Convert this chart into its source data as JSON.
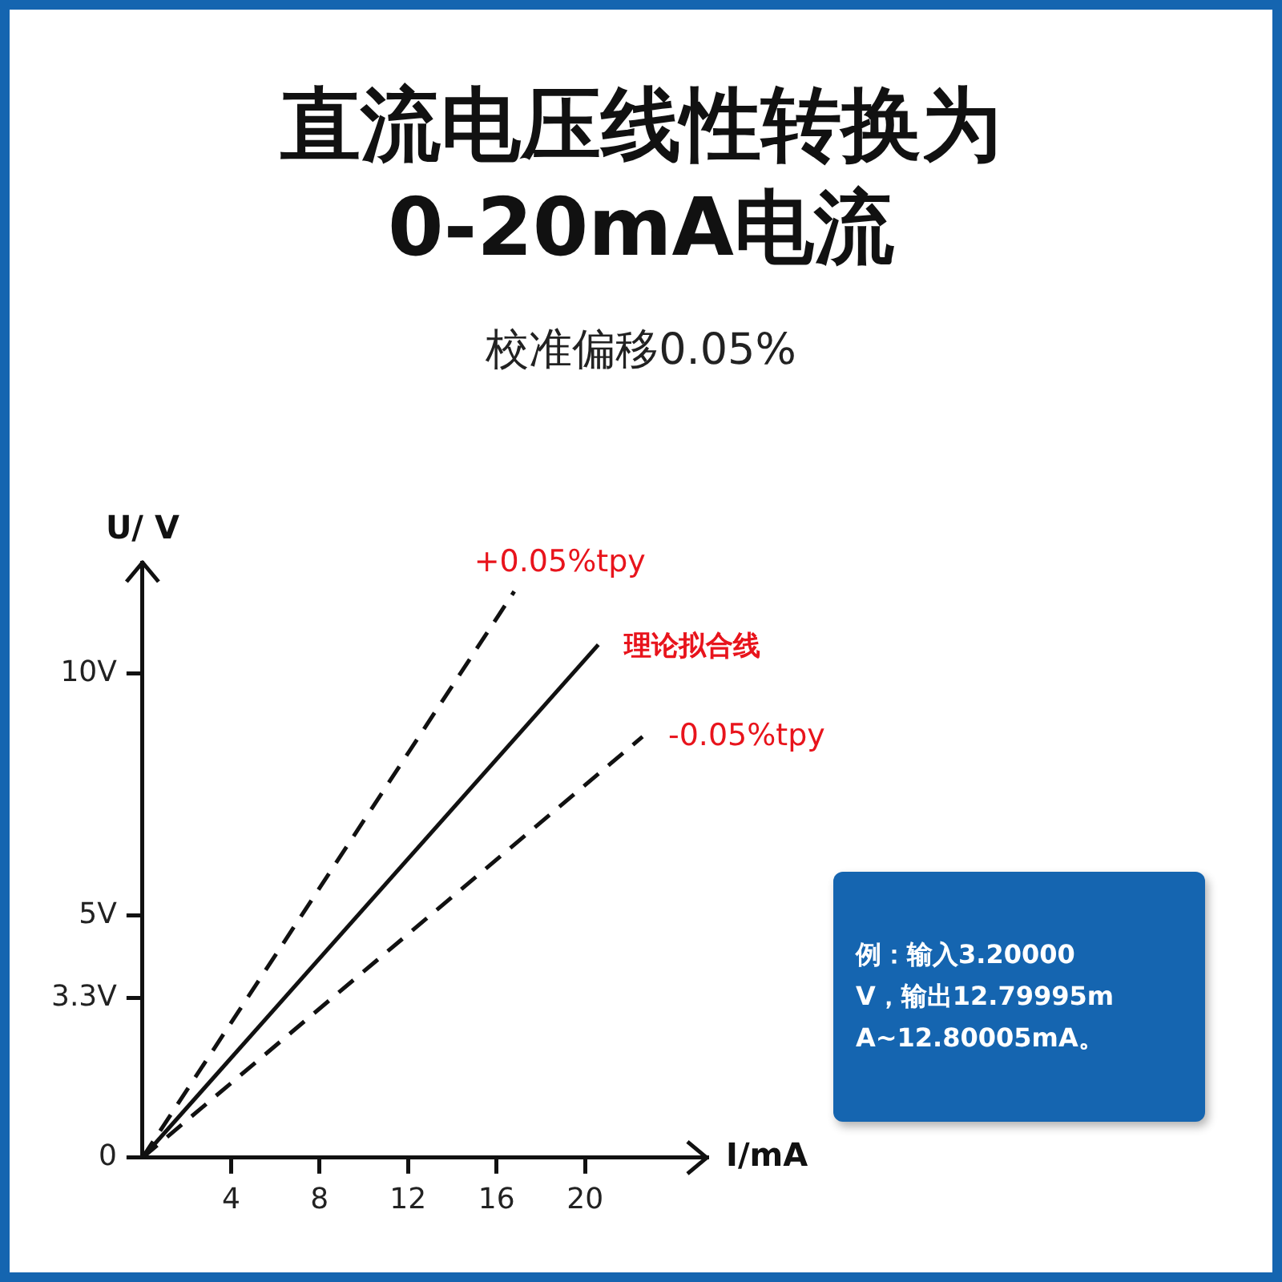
{
  "chart_data": {
    "type": "line",
    "title": "直流电压线性转换为\n0-20mA电流",
    "subtitle": "校准偏移0.05%",
    "xlabel": "I/mA",
    "ylabel": "U/ V",
    "xlim": [
      0,
      25.5
    ],
    "ylim": [
      0,
      12.3
    ],
    "xticks": [
      4,
      8,
      12,
      16,
      20
    ],
    "yticks": [
      {
        "value": 0,
        "label": "0"
      },
      {
        "value": 3.3,
        "label": "3.3V"
      },
      {
        "value": 5,
        "label": "5V"
      },
      {
        "value": 10,
        "label": "10V"
      }
    ],
    "grid": false,
    "legend": false,
    "marker": "none",
    "series": [
      {
        "name": "+0.05%tpy",
        "color": "#111111",
        "line_style": "dashed",
        "x": [
          0,
          16.8
        ],
        "values": [
          0,
          11.7
        ]
      },
      {
        "name": "理论拟合线",
        "color": "#111111",
        "line_style": "solid",
        "x": [
          0,
          20.6
        ],
        "values": [
          0,
          10.6
        ]
      },
      {
        "name": "-0.05%tpy",
        "color": "#111111",
        "line_style": "dashed",
        "x": [
          0,
          22.6
        ],
        "values": [
          0,
          8.7
        ]
      }
    ],
    "annotations": [
      "例：输入3.20000V，输出12.79995mA~12.80005mA。"
    ]
  }
}
